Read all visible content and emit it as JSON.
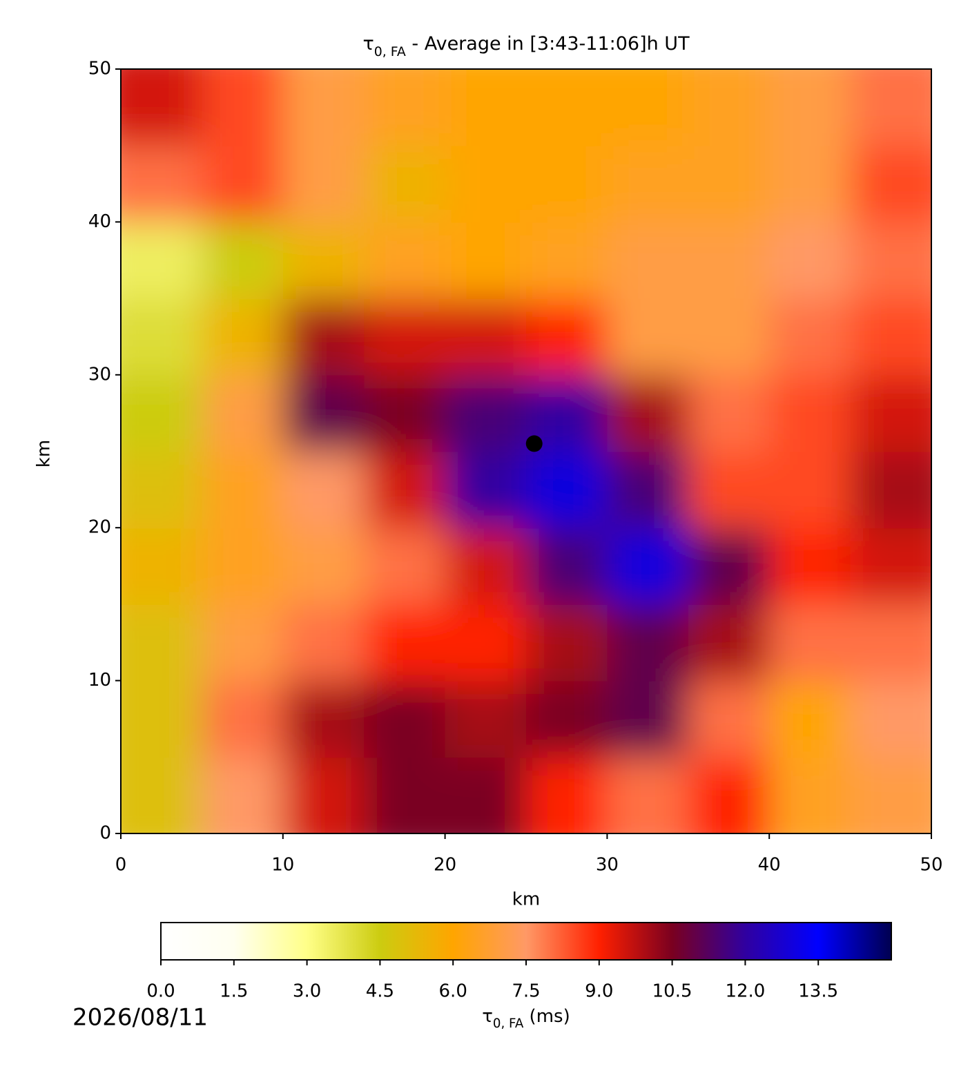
{
  "chart_data": {
    "type": "heatmap",
    "title": {
      "symbol": "τ",
      "subscript": "0, FA",
      "text": " - Average in [3:43-11:06]h UT"
    },
    "xlabel": "km",
    "ylabel": "km",
    "xlim": [
      0,
      50
    ],
    "ylim": [
      0,
      50
    ],
    "xticks": [
      0,
      10,
      20,
      30,
      40,
      50
    ],
    "yticks": [
      0,
      10,
      20,
      30,
      40,
      50
    ],
    "x": [
      2.5,
      7.5,
      12.5,
      17.5,
      22.5,
      27.5,
      32.5,
      37.5,
      42.5,
      47.5
    ],
    "y": [
      2.5,
      7.5,
      12.5,
      17.5,
      22.5,
      27.5,
      32.5,
      37.5,
      42.5,
      47.5
    ],
    "z": [
      [
        5,
        7.5,
        9.5,
        10.5,
        10.5,
        9,
        8,
        9,
        6.5,
        7
      ],
      [
        5,
        8,
        10,
        10.5,
        10,
        10.5,
        11,
        8,
        6,
        7.5
      ],
      [
        5,
        7,
        8,
        9,
        9,
        10,
        11,
        10,
        8,
        8
      ],
      [
        5.5,
        6.5,
        7,
        8,
        9.5,
        11.5,
        13,
        11,
        9,
        9.5
      ],
      [
        5,
        6.5,
        7.5,
        9.5,
        12,
        13,
        11.5,
        8.5,
        8.5,
        10
      ],
      [
        4.5,
        7,
        11,
        10.5,
        11.5,
        12,
        10,
        8,
        8.5,
        9.5
      ],
      [
        4,
        5.5,
        10,
        9.5,
        9.5,
        9,
        7,
        7,
        8,
        8.5
      ],
      [
        3.5,
        4.5,
        5.5,
        6.5,
        6,
        6.5,
        7,
        7,
        7.5,
        8
      ],
      [
        8,
        8.5,
        7,
        5.5,
        6,
        6,
        6.5,
        6.5,
        7,
        8.5
      ],
      [
        9.5,
        8.5,
        7,
        6.5,
        6,
        6,
        6,
        6.5,
        7,
        8
      ]
    ],
    "marker": {
      "x": 25.5,
      "y": 25.5,
      "color": "#000000"
    },
    "colorbar": {
      "label": {
        "symbol": "τ",
        "subscript": "0, FA",
        "text": " (ms)"
      },
      "clim": [
        0,
        15
      ],
      "colors": [
        "#ffffff",
        "#fffff0",
        "#ffff88",
        "#cccc10",
        "#ffa500",
        "#ff9966",
        "#ff2000",
        "#7a0020",
        "#3000a0",
        "#0000ff",
        "#000050"
      ],
      "ticks": [
        {
          "value": 0,
          "label": "0.0"
        },
        1.5,
        {
          "value": 3,
          "label": "3.0"
        },
        4.5,
        {
          "value": 6,
          "label": "6.0"
        },
        7.5,
        {
          "value": 9,
          "label": "9.0"
        },
        10.5,
        {
          "value": 12,
          "label": "12.0"
        },
        13.5
      ]
    },
    "date": "2026/08/11"
  }
}
